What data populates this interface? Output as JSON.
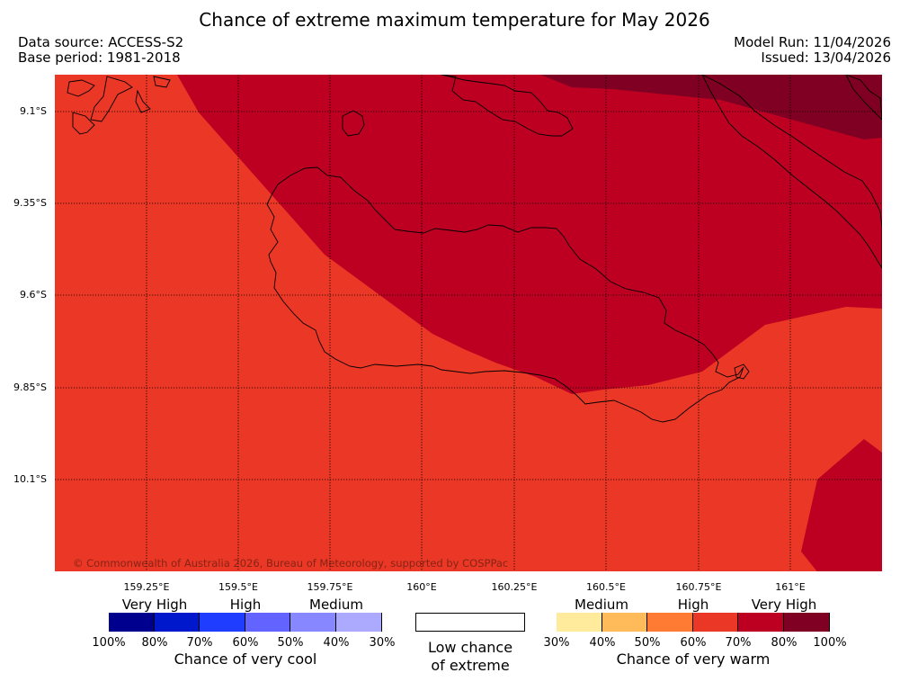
{
  "title": "Chance of extreme maximum temperature for May 2026",
  "data_source": "Data source: ACCESS-S2",
  "base_period": "Base period: 1981-2018",
  "model_run": "Model Run: 11/04/2026",
  "issued": "Issued: 13/04/2026",
  "copyright": "© Commonwealth of Australia 2026, Bureau of Meteorology, supported by COSPPac",
  "lat_labels": [
    "9.1°S",
    "9.35°S",
    "9.6°S",
    "9.85°S",
    "10.1°S"
  ],
  "lon_labels": [
    "159.25°E",
    "159.5°E",
    "159.75°E",
    "160°E",
    "160.25°E",
    "160.5°E",
    "160.75°E",
    "161°E"
  ],
  "legend": {
    "cool": {
      "headings": [
        "Very High",
        "High",
        "Medium"
      ],
      "colors": [
        "#00008f",
        "#0018cc",
        "#1f3dff",
        "#6363ff",
        "#8787ff",
        "#abaaff"
      ],
      "percents": [
        "100%",
        "80%",
        "70%",
        "60%",
        "50%",
        "40%",
        "30%"
      ],
      "caption": "Chance of very cool"
    },
    "low": {
      "line1": "Low chance",
      "line2": "of extreme",
      "color": "#ffffff"
    },
    "warm": {
      "headings": [
        "Medium",
        "High",
        "Very High"
      ],
      "colors": [
        "#ffeb9b",
        "#ffbb5a",
        "#ff7a33",
        "#eb3725",
        "#bd0022",
        "#7f0023"
      ],
      "percents": [
        "30%",
        "40%",
        "50%",
        "60%",
        "70%",
        "80%",
        "100%"
      ],
      "caption": "Chance of very warm"
    }
  },
  "map_regions": {
    "base_color": "#eb3725",
    "zone_70_80_color": "#bd0022",
    "zone_80_100_color": "#7f0023"
  }
}
